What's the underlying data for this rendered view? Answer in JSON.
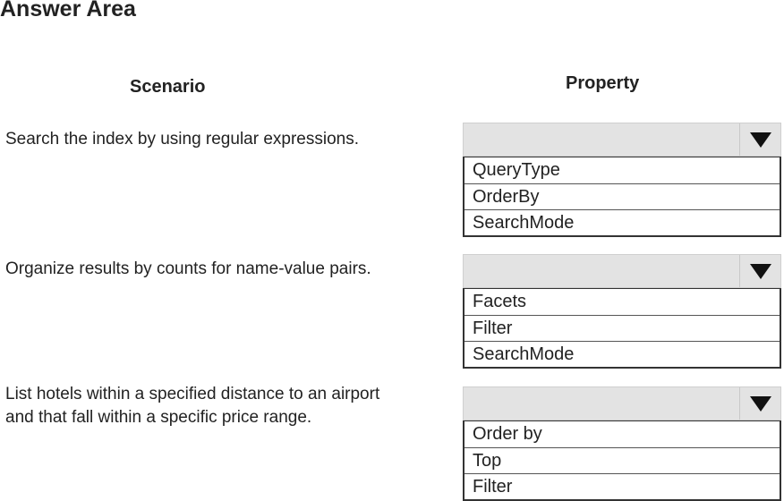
{
  "title": "Answer Area",
  "headers": {
    "scenario": "Scenario",
    "property": "Property"
  },
  "rows": [
    {
      "scenario": [
        "Search the index by using regular expressions."
      ],
      "options": [
        "QueryType",
        "OrderBy",
        "SearchMode"
      ]
    },
    {
      "scenario": [
        "Organize results by counts for name-value pairs."
      ],
      "options": [
        "Facets",
        "Filter",
        "SearchMode"
      ]
    },
    {
      "scenario": [
        "List hotels within a specified distance to an airport",
        "and that fall within a specific price range."
      ],
      "options": [
        "Order by",
        "Top",
        "Filter"
      ]
    }
  ]
}
